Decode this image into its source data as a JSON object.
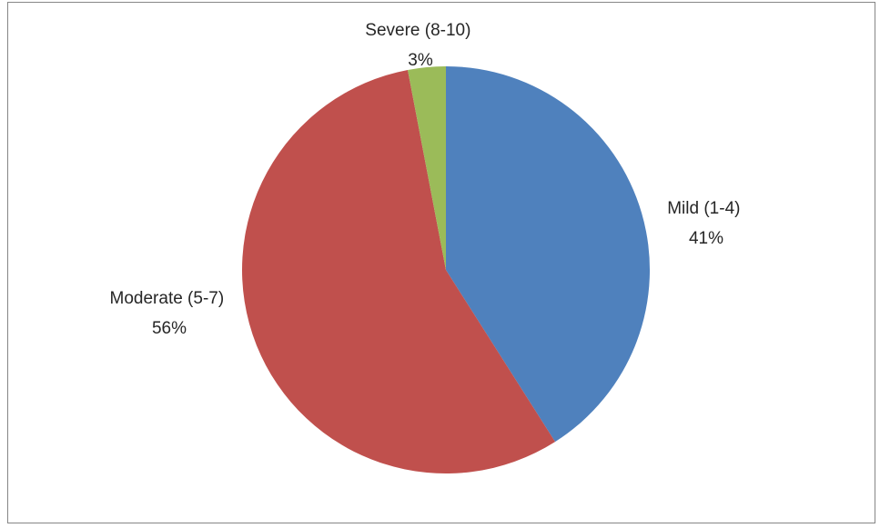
{
  "chart_data": {
    "type": "pie",
    "title": "",
    "slices": [
      {
        "label": "Mild (1-4)",
        "value": 41,
        "percent_label": "41%",
        "color": "#4F81BD"
      },
      {
        "label": "Moderate (5-7)",
        "value": 56,
        "percent_label": "56%",
        "color": "#C0504D"
      },
      {
        "label": "Severe (8-10)",
        "value": 3,
        "percent_label": "3%",
        "color": "#9BBB59"
      }
    ],
    "start_angle": "12 o'clock",
    "direction": "clockwise",
    "legend": "none",
    "data_labels": "category name and percentage"
  }
}
